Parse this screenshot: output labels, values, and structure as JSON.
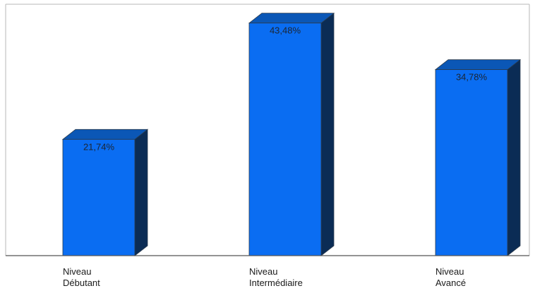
{
  "chart_data": {
    "type": "bar",
    "categories": [
      [
        "Niveau",
        "Débutant"
      ],
      [
        "Niveau",
        "Intermédiaire"
      ],
      [
        "Niveau",
        "Avancé"
      ]
    ],
    "values": [
      21.74,
      43.48,
      34.78
    ],
    "value_labels": [
      "21,74%",
      "43,48%",
      "34,78%"
    ],
    "title": "",
    "xlabel": "",
    "ylabel": "",
    "ylim": [
      0,
      47
    ],
    "grid": false,
    "legend": "none",
    "style": "3d",
    "colors": {
      "front": "#0a6df2",
      "top": "#0b57b6",
      "side": "#0b2c55",
      "outline": "#2a3b4e",
      "axis": "#555555",
      "frame": "#b7b7b7",
      "label_text": "#1a1a1a",
      "value_text": "#1c2532"
    }
  }
}
